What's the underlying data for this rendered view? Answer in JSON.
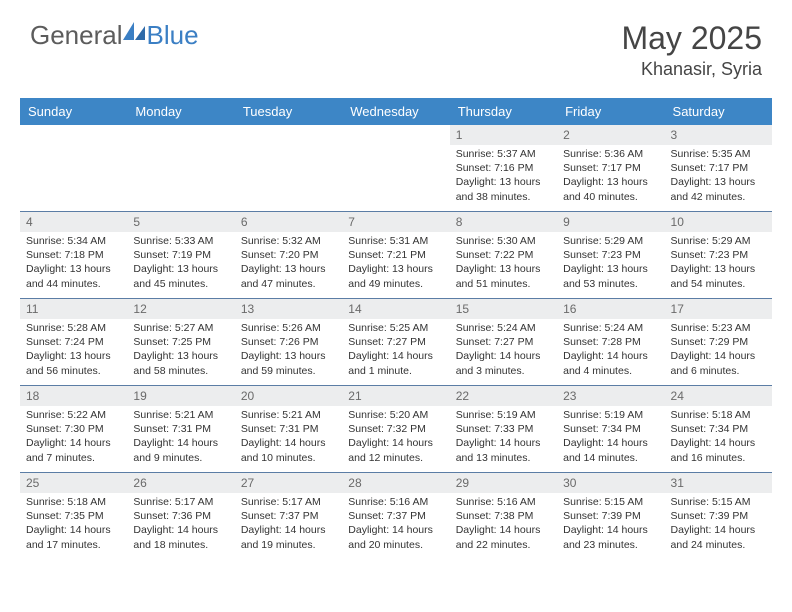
{
  "brand": {
    "part1": "General",
    "part2": "Blue"
  },
  "title": {
    "month": "May 2025",
    "location": "Khanasir, Syria"
  },
  "colors": {
    "header_bar": "#3d86c6",
    "row_divider": "#5b7da5",
    "daynum_bg": "#ecedee"
  },
  "dow": [
    "Sunday",
    "Monday",
    "Tuesday",
    "Wednesday",
    "Thursday",
    "Friday",
    "Saturday"
  ],
  "weeks": [
    [
      null,
      null,
      null,
      null,
      {
        "n": "1",
        "sr": "5:37 AM",
        "ss": "7:16 PM",
        "dl": "13 hours and 38 minutes."
      },
      {
        "n": "2",
        "sr": "5:36 AM",
        "ss": "7:17 PM",
        "dl": "13 hours and 40 minutes."
      },
      {
        "n": "3",
        "sr": "5:35 AM",
        "ss": "7:17 PM",
        "dl": "13 hours and 42 minutes."
      }
    ],
    [
      {
        "n": "4",
        "sr": "5:34 AM",
        "ss": "7:18 PM",
        "dl": "13 hours and 44 minutes."
      },
      {
        "n": "5",
        "sr": "5:33 AM",
        "ss": "7:19 PM",
        "dl": "13 hours and 45 minutes."
      },
      {
        "n": "6",
        "sr": "5:32 AM",
        "ss": "7:20 PM",
        "dl": "13 hours and 47 minutes."
      },
      {
        "n": "7",
        "sr": "5:31 AM",
        "ss": "7:21 PM",
        "dl": "13 hours and 49 minutes."
      },
      {
        "n": "8",
        "sr": "5:30 AM",
        "ss": "7:22 PM",
        "dl": "13 hours and 51 minutes."
      },
      {
        "n": "9",
        "sr": "5:29 AM",
        "ss": "7:23 PM",
        "dl": "13 hours and 53 minutes."
      },
      {
        "n": "10",
        "sr": "5:29 AM",
        "ss": "7:23 PM",
        "dl": "13 hours and 54 minutes."
      }
    ],
    [
      {
        "n": "11",
        "sr": "5:28 AM",
        "ss": "7:24 PM",
        "dl": "13 hours and 56 minutes."
      },
      {
        "n": "12",
        "sr": "5:27 AM",
        "ss": "7:25 PM",
        "dl": "13 hours and 58 minutes."
      },
      {
        "n": "13",
        "sr": "5:26 AM",
        "ss": "7:26 PM",
        "dl": "13 hours and 59 minutes."
      },
      {
        "n": "14",
        "sr": "5:25 AM",
        "ss": "7:27 PM",
        "dl": "14 hours and 1 minute."
      },
      {
        "n": "15",
        "sr": "5:24 AM",
        "ss": "7:27 PM",
        "dl": "14 hours and 3 minutes."
      },
      {
        "n": "16",
        "sr": "5:24 AM",
        "ss": "7:28 PM",
        "dl": "14 hours and 4 minutes."
      },
      {
        "n": "17",
        "sr": "5:23 AM",
        "ss": "7:29 PM",
        "dl": "14 hours and 6 minutes."
      }
    ],
    [
      {
        "n": "18",
        "sr": "5:22 AM",
        "ss": "7:30 PM",
        "dl": "14 hours and 7 minutes."
      },
      {
        "n": "19",
        "sr": "5:21 AM",
        "ss": "7:31 PM",
        "dl": "14 hours and 9 minutes."
      },
      {
        "n": "20",
        "sr": "5:21 AM",
        "ss": "7:31 PM",
        "dl": "14 hours and 10 minutes."
      },
      {
        "n": "21",
        "sr": "5:20 AM",
        "ss": "7:32 PM",
        "dl": "14 hours and 12 minutes."
      },
      {
        "n": "22",
        "sr": "5:19 AM",
        "ss": "7:33 PM",
        "dl": "14 hours and 13 minutes."
      },
      {
        "n": "23",
        "sr": "5:19 AM",
        "ss": "7:34 PM",
        "dl": "14 hours and 14 minutes."
      },
      {
        "n": "24",
        "sr": "5:18 AM",
        "ss": "7:34 PM",
        "dl": "14 hours and 16 minutes."
      }
    ],
    [
      {
        "n": "25",
        "sr": "5:18 AM",
        "ss": "7:35 PM",
        "dl": "14 hours and 17 minutes."
      },
      {
        "n": "26",
        "sr": "5:17 AM",
        "ss": "7:36 PM",
        "dl": "14 hours and 18 minutes."
      },
      {
        "n": "27",
        "sr": "5:17 AM",
        "ss": "7:37 PM",
        "dl": "14 hours and 19 minutes."
      },
      {
        "n": "28",
        "sr": "5:16 AM",
        "ss": "7:37 PM",
        "dl": "14 hours and 20 minutes."
      },
      {
        "n": "29",
        "sr": "5:16 AM",
        "ss": "7:38 PM",
        "dl": "14 hours and 22 minutes."
      },
      {
        "n": "30",
        "sr": "5:15 AM",
        "ss": "7:39 PM",
        "dl": "14 hours and 23 minutes."
      },
      {
        "n": "31",
        "sr": "5:15 AM",
        "ss": "7:39 PM",
        "dl": "14 hours and 24 minutes."
      }
    ]
  ],
  "labels": {
    "sunrise": "Sunrise:",
    "sunset": "Sunset:",
    "daylight": "Daylight:"
  }
}
